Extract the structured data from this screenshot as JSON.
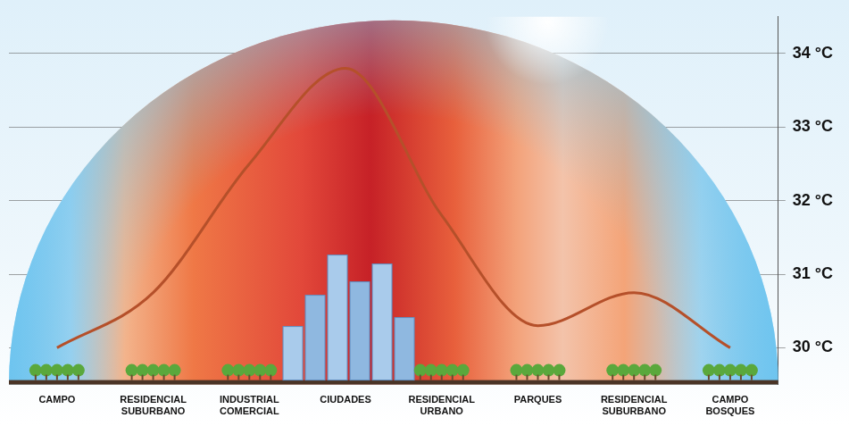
{
  "chart_data": {
    "type": "line",
    "categories": [
      "CAMPO",
      "RESIDENCIAL SUBURBANO",
      "INDUSTRIAL COMERCIAL",
      "CIUDADES",
      "RESIDENCIAL URBANO",
      "PARQUES",
      "RESIDENCIAL SUBURBANO",
      "CAMPO BOSQUES"
    ],
    "values": [
      30.0,
      30.75,
      32.5,
      33.8,
      31.8,
      30.3,
      30.75,
      30.0
    ],
    "color": "#b5502a",
    "ylim": [
      29.5,
      34.5
    ],
    "yticks": [
      {
        "value": 30,
        "label": "30 °C"
      },
      {
        "value": 31,
        "label": "31 °C"
      },
      {
        "value": 32,
        "label": "32 °C"
      },
      {
        "value": 33,
        "label": "33 °C"
      },
      {
        "value": 34,
        "label": "34 °C"
      }
    ],
    "grid": true,
    "marker": "none",
    "line_style": "solid"
  }
}
